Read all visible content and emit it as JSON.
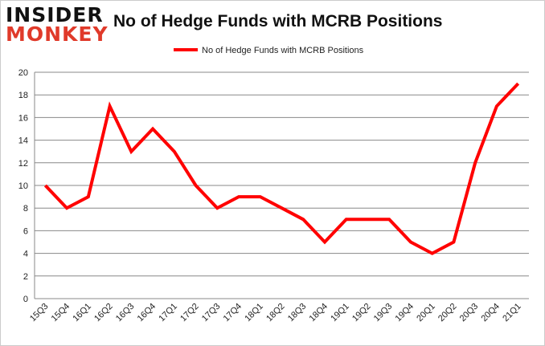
{
  "logo": {
    "line1": "INSIDER",
    "line2": "MONKEY"
  },
  "chart_data": {
    "type": "line",
    "title": "No of Hedge Funds with MCRB Positions",
    "categories": [
      "15Q3",
      "15Q4",
      "16Q1",
      "16Q2",
      "16Q3",
      "16Q4",
      "17Q1",
      "17Q2",
      "17Q3",
      "17Q4",
      "18Q1",
      "18Q2",
      "18Q3",
      "18Q4",
      "19Q1",
      "19Q2",
      "19Q3",
      "19Q4",
      "20Q1",
      "20Q2",
      "20Q3",
      "20Q4",
      "21Q1"
    ],
    "series": [
      {
        "name": "No of Hedge Funds with MCRB Positions",
        "color": "#ff0000",
        "values": [
          10,
          8,
          9,
          17,
          13,
          15,
          13,
          10,
          8,
          9,
          9,
          8,
          7,
          5,
          7,
          7,
          7,
          5,
          4,
          5,
          12,
          17,
          19
        ]
      }
    ],
    "ylim": [
      0,
      20
    ],
    "yticks": [
      0,
      2,
      4,
      6,
      8,
      10,
      12,
      14,
      16,
      18,
      20
    ],
    "grid": true,
    "legend": "top-center"
  }
}
